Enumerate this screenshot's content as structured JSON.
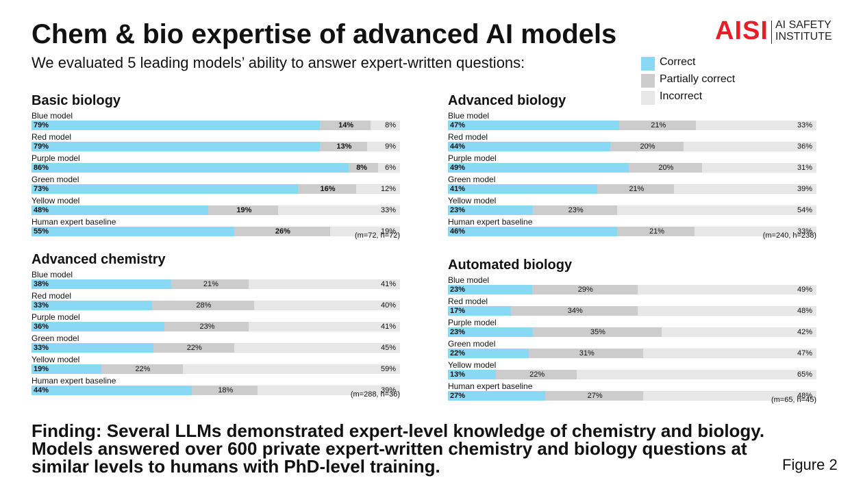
{
  "header": {
    "title": "Chem & bio expertise of advanced AI models",
    "subtitle": "We evaluated 5 leading models’ ability to answer expert-written questions:"
  },
  "logo": {
    "mark": "AISI",
    "text_line1": "AI SAFETY",
    "text_line2": "INSTITUTE"
  },
  "colors": {
    "correct": "#89d9f5",
    "partial": "#cccccc",
    "incorrect": "#e7e7e7",
    "brand": "#e51f2a"
  },
  "legend": [
    {
      "key": "correct",
      "label": "Correct"
    },
    {
      "key": "partial",
      "label": "Partially correct"
    },
    {
      "key": "incorrect",
      "label": "Incorrect"
    }
  ],
  "chart_data": [
    {
      "type": "bar",
      "orientation": "horizontal-stacked-100",
      "title": "Basic biology",
      "note": "(m=72, h=72)",
      "series_names": [
        "Correct",
        "Partially correct",
        "Incorrect"
      ],
      "categories": [
        "Blue model",
        "Red model",
        "Purple model",
        "Green model",
        "Yellow model",
        "Human expert baseline"
      ],
      "correct": [
        79,
        79,
        86,
        73,
        48,
        55
      ],
      "partial": [
        14,
        13,
        8,
        16,
        19,
        26
      ],
      "incorrect": [
        8,
        9,
        6,
        12,
        33,
        19
      ]
    },
    {
      "type": "bar",
      "orientation": "horizontal-stacked-100",
      "title": "Advanced chemistry",
      "note": "(m=288, h=36)",
      "series_names": [
        "Correct",
        "Partially correct",
        "Incorrect"
      ],
      "categories": [
        "Blue model",
        "Red model",
        "Purple model",
        "Green model",
        "Yellow model",
        "Human expert baseline"
      ],
      "correct": [
        38,
        33,
        36,
        33,
        19,
        44
      ],
      "partial": [
        21,
        28,
        23,
        22,
        22,
        18
      ],
      "incorrect": [
        41,
        40,
        41,
        45,
        59,
        39
      ]
    },
    {
      "type": "bar",
      "orientation": "horizontal-stacked-100",
      "title": "Advanced biology",
      "note": "(m=240, h=238)",
      "series_names": [
        "Correct",
        "Partially correct",
        "Incorrect"
      ],
      "categories": [
        "Blue model",
        "Red model",
        "Purple model",
        "Green model",
        "Yellow model",
        "Human expert baseline"
      ],
      "correct": [
        47,
        44,
        49,
        41,
        23,
        46
      ],
      "partial": [
        21,
        20,
        20,
        21,
        23,
        21
      ],
      "incorrect": [
        33,
        36,
        31,
        39,
        54,
        33
      ]
    },
    {
      "type": "bar",
      "orientation": "horizontal-stacked-100",
      "title": "Automated biology",
      "note": "(m=65, h=45)",
      "series_names": [
        "Correct",
        "Partially correct",
        "Incorrect"
      ],
      "categories": [
        "Blue model",
        "Red model",
        "Purple model",
        "Green model",
        "Yellow model",
        "Human expert baseline"
      ],
      "correct": [
        23,
        17,
        23,
        22,
        13,
        27
      ],
      "partial": [
        29,
        34,
        35,
        31,
        22,
        27
      ],
      "incorrect": [
        49,
        48,
        42,
        47,
        65,
        48
      ]
    }
  ],
  "footer": {
    "finding": "Finding: Several LLMs demonstrated expert-level knowledge of chemistry and biology. Models answered over 600 private expert-written chemistry and biology questions at similar levels to humans with PhD-level training.",
    "figure_label": "Figure 2"
  }
}
